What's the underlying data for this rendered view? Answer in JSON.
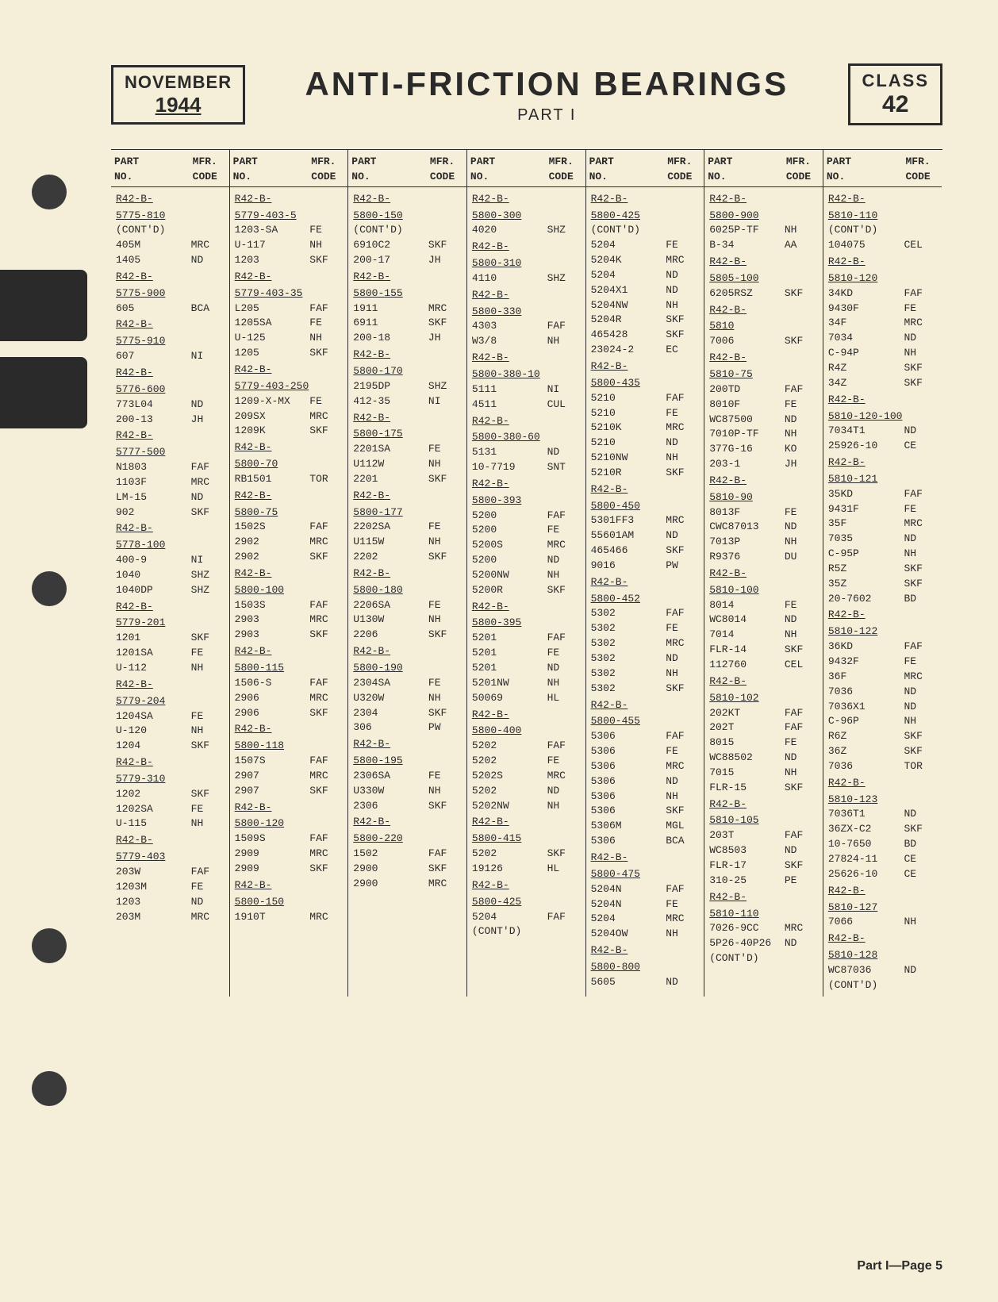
{
  "header": {
    "month": "NOVEMBER",
    "year": "1944",
    "title": "ANTI-FRICTION BEARINGS",
    "part": "PART I",
    "class_label": "CLASS",
    "class_num": "42"
  },
  "column_header": {
    "part_no_l1": "PART",
    "part_no_l2": "NO.",
    "mfr_l1": "MFR.",
    "mfr_l2": "CODE"
  },
  "footer": "Part I—Page 5",
  "colors": {
    "page_bg": "#f5eed8",
    "ink": "#2a2a2a"
  },
  "columns": [
    [
      {
        "hdr": "R42-B-\n5775-810",
        "note": "(CONT'D)"
      },
      {
        "pn": "405M",
        "mc": "MRC"
      },
      {
        "pn": "1405",
        "mc": "ND"
      },
      {
        "hdr": "R42-B-\n5775-900"
      },
      {
        "pn": "605",
        "mc": "BCA"
      },
      {
        "hdr": "R42-B-\n5775-910"
      },
      {
        "pn": "607",
        "mc": "NI"
      },
      {
        "hdr": "R42-B-\n5776-600"
      },
      {
        "pn": "773L04",
        "mc": "ND"
      },
      {
        "pn": "200-13",
        "mc": "JH"
      },
      {
        "hdr": "R42-B-\n5777-500"
      },
      {
        "pn": "N1803",
        "mc": "FAF"
      },
      {
        "pn": "1103F",
        "mc": "MRC"
      },
      {
        "pn": "LM-15",
        "mc": "ND"
      },
      {
        "pn": "902",
        "mc": "SKF"
      },
      {
        "hdr": "R42-B-\n5778-100"
      },
      {
        "pn": "400-9",
        "mc": "NI"
      },
      {
        "pn": "1040",
        "mc": "SHZ"
      },
      {
        "pn": "1040DP",
        "mc": "SHZ"
      },
      {
        "hdr": "R42-B-\n5779-201"
      },
      {
        "pn": "1201",
        "mc": "SKF"
      },
      {
        "pn": "1201SA",
        "mc": "FE"
      },
      {
        "pn": "U-112",
        "mc": "NH"
      },
      {
        "hdr": "R42-B-\n5779-204"
      },
      {
        "pn": "1204SA",
        "mc": "FE"
      },
      {
        "pn": "U-120",
        "mc": "NH"
      },
      {
        "pn": "1204",
        "mc": "SKF"
      },
      {
        "hdr": "R42-B-\n5779-310"
      },
      {
        "pn": "1202",
        "mc": "SKF"
      },
      {
        "pn": "1202SA",
        "mc": "FE"
      },
      {
        "pn": "U-115",
        "mc": "NH"
      },
      {
        "hdr": "R42-B-\n5779-403"
      },
      {
        "pn": "203W",
        "mc": "FAF"
      },
      {
        "pn": "1203M",
        "mc": "FE"
      },
      {
        "pn": "1203",
        "mc": "ND"
      },
      {
        "pn": "203M",
        "mc": "MRC"
      }
    ],
    [
      {
        "hdr": "R42-B-\n5779-403-5"
      },
      {
        "pn": "1203-SA",
        "mc": "FE"
      },
      {
        "pn": "U-117",
        "mc": "NH"
      },
      {
        "pn": "1203",
        "mc": "SKF"
      },
      {
        "hdr": "R42-B-\n5779-403-35"
      },
      {
        "pn": "L205",
        "mc": "FAF"
      },
      {
        "pn": "1205SA",
        "mc": "FE"
      },
      {
        "pn": "U-125",
        "mc": "NH"
      },
      {
        "pn": "1205",
        "mc": "SKF"
      },
      {
        "hdr": "R42-B-\n5779-403-250"
      },
      {
        "pn": "1209-X-MX",
        "mc": "FE"
      },
      {
        "pn": "209SX",
        "mc": "MRC"
      },
      {
        "pn": "1209K",
        "mc": "SKF"
      },
      {
        "hdr": "R42-B-\n5800-70"
      },
      {
        "pn": "RB1501",
        "mc": "TOR"
      },
      {
        "hdr": "R42-B-\n5800-75"
      },
      {
        "pn": "1502S",
        "mc": "FAF"
      },
      {
        "pn": "2902",
        "mc": "MRC"
      },
      {
        "pn": "2902",
        "mc": "SKF"
      },
      {
        "hdr": "R42-B-\n5800-100"
      },
      {
        "pn": "1503S",
        "mc": "FAF"
      },
      {
        "pn": "2903",
        "mc": "MRC"
      },
      {
        "pn": "2903",
        "mc": "SKF"
      },
      {
        "hdr": "R42-B-\n5800-115"
      },
      {
        "pn": "1506-S",
        "mc": "FAF"
      },
      {
        "pn": "2906",
        "mc": "MRC"
      },
      {
        "pn": "2906",
        "mc": "SKF"
      },
      {
        "hdr": "R42-B-\n5800-118"
      },
      {
        "pn": "1507S",
        "mc": "FAF"
      },
      {
        "pn": "2907",
        "mc": "MRC"
      },
      {
        "pn": "2907",
        "mc": "SKF"
      },
      {
        "hdr": "R42-B-\n5800-120"
      },
      {
        "pn": "1509S",
        "mc": "FAF"
      },
      {
        "pn": "2909",
        "mc": "MRC"
      },
      {
        "pn": "2909",
        "mc": "SKF"
      },
      {
        "hdr": "R42-B-\n5800-150"
      },
      {
        "pn": "1910T",
        "mc": "MRC"
      }
    ],
    [
      {
        "hdr": "R42-B-\n5800-150",
        "note": "(CONT'D)"
      },
      {
        "pn": "6910C2",
        "mc": "SKF"
      },
      {
        "pn": "200-17",
        "mc": "JH"
      },
      {
        "hdr": "R42-B-\n5800-155"
      },
      {
        "pn": "1911",
        "mc": "MRC"
      },
      {
        "pn": "6911",
        "mc": "SKF"
      },
      {
        "pn": "200-18",
        "mc": "JH"
      },
      {
        "hdr": "R42-B-\n5800-170"
      },
      {
        "pn": "2195DP",
        "mc": "SHZ"
      },
      {
        "pn": "412-35",
        "mc": "NI"
      },
      {
        "hdr": "R42-B-\n5800-175"
      },
      {
        "pn": "2201SA",
        "mc": "FE"
      },
      {
        "pn": "U112W",
        "mc": "NH"
      },
      {
        "pn": "2201",
        "mc": "SKF"
      },
      {
        "hdr": "R42-B-\n5800-177"
      },
      {
        "pn": "2202SA",
        "mc": "FE"
      },
      {
        "pn": "U115W",
        "mc": "NH"
      },
      {
        "pn": "2202",
        "mc": "SKF"
      },
      {
        "hdr": "R42-B-\n5800-180"
      },
      {
        "pn": "2206SA",
        "mc": "FE"
      },
      {
        "pn": "U130W",
        "mc": "NH"
      },
      {
        "pn": "2206",
        "mc": "SKF"
      },
      {
        "hdr": "R42-B-\n5800-190"
      },
      {
        "pn": "2304SA",
        "mc": "FE"
      },
      {
        "pn": "U320W",
        "mc": "NH"
      },
      {
        "pn": "2304",
        "mc": "SKF"
      },
      {
        "pn": "306",
        "mc": "PW"
      },
      {
        "hdr": "R42-B-\n5800-195"
      },
      {
        "pn": "2306SA",
        "mc": "FE"
      },
      {
        "pn": "U330W",
        "mc": "NH"
      },
      {
        "pn": "2306",
        "mc": "SKF"
      },
      {
        "hdr": "R42-B-\n5800-220"
      },
      {
        "pn": "1502",
        "mc": "FAF"
      },
      {
        "pn": "2900",
        "mc": "SKF"
      },
      {
        "pn": "2900",
        "mc": "MRC"
      }
    ],
    [
      {
        "hdr": "R42-B-\n5800-300"
      },
      {
        "pn": "4020",
        "mc": "SHZ"
      },
      {
        "hdr": "R42-B-\n5800-310"
      },
      {
        "pn": "4110",
        "mc": "SHZ"
      },
      {
        "hdr": "R42-B-\n5800-330"
      },
      {
        "pn": "4303",
        "mc": "FAF"
      },
      {
        "pn": "W3/8",
        "mc": "NH"
      },
      {
        "hdr": "R42-B-\n5800-380-10"
      },
      {
        "pn": "5111",
        "mc": "NI"
      },
      {
        "pn": "4511",
        "mc": "CUL"
      },
      {
        "hdr": "R42-B-\n5800-380-60"
      },
      {
        "pn": "5131",
        "mc": "ND"
      },
      {
        "pn": "10-7719",
        "mc": "SNT"
      },
      {
        "hdr": "R42-B-\n5800-393"
      },
      {
        "pn": "5200",
        "mc": "FAF"
      },
      {
        "pn": "5200",
        "mc": "FE"
      },
      {
        "pn": "5200S",
        "mc": "MRC"
      },
      {
        "pn": "5200",
        "mc": "ND"
      },
      {
        "pn": "5200NW",
        "mc": "NH"
      },
      {
        "pn": "5200R",
        "mc": "SKF"
      },
      {
        "hdr": "R42-B-\n5800-395"
      },
      {
        "pn": "5201",
        "mc": "FAF"
      },
      {
        "pn": "5201",
        "mc": "FE"
      },
      {
        "pn": "5201",
        "mc": "ND"
      },
      {
        "pn": "5201NW",
        "mc": "NH"
      },
      {
        "pn": "50069",
        "mc": "HL"
      },
      {
        "hdr": "R42-B-\n5800-400"
      },
      {
        "pn": "5202",
        "mc": "FAF"
      },
      {
        "pn": "5202",
        "mc": "FE"
      },
      {
        "pn": "5202S",
        "mc": "MRC"
      },
      {
        "pn": "5202",
        "mc": "ND"
      },
      {
        "pn": "5202NW",
        "mc": "NH"
      },
      {
        "hdr": "R42-B-\n5800-415"
      },
      {
        "pn": "5202",
        "mc": "SKF"
      },
      {
        "pn": "19126",
        "mc": "HL"
      },
      {
        "hdr": "R42-B-\n5800-425"
      },
      {
        "pn": "5204",
        "mc": "FAF"
      },
      {
        "pn": "(CONT'D)"
      }
    ],
    [
      {
        "hdr": "R42-B-\n5800-425",
        "note": "(CONT'D)"
      },
      {
        "pn": "5204",
        "mc": "FE"
      },
      {
        "pn": "5204K",
        "mc": "MRC"
      },
      {
        "pn": "5204",
        "mc": "ND"
      },
      {
        "pn": "5204X1",
        "mc": "ND"
      },
      {
        "pn": "5204NW",
        "mc": "NH"
      },
      {
        "pn": "5204R",
        "mc": "SKF"
      },
      {
        "pn": "465428",
        "mc": "SKF"
      },
      {
        "pn": "23024-2",
        "mc": "EC"
      },
      {
        "hdr": "R42-B-\n5800-435"
      },
      {
        "pn": "5210",
        "mc": "FAF"
      },
      {
        "pn": "5210",
        "mc": "FE"
      },
      {
        "pn": "5210K",
        "mc": "MRC"
      },
      {
        "pn": "5210",
        "mc": "ND"
      },
      {
        "pn": "5210NW",
        "mc": "NH"
      },
      {
        "pn": "5210R",
        "mc": "SKF"
      },
      {
        "hdr": "R42-B-\n5800-450"
      },
      {
        "pn": "5301FF3",
        "mc": "MRC"
      },
      {
        "pn": "55601AM",
        "mc": "ND"
      },
      {
        "pn": "465466",
        "mc": "SKF"
      },
      {
        "pn": "9016",
        "mc": "PW"
      },
      {
        "hdr": "R42-B-\n5800-452"
      },
      {
        "pn": "5302",
        "mc": "FAF"
      },
      {
        "pn": "5302",
        "mc": "FE"
      },
      {
        "pn": "5302",
        "mc": "MRC"
      },
      {
        "pn": "5302",
        "mc": "ND"
      },
      {
        "pn": "5302",
        "mc": "NH"
      },
      {
        "pn": "5302",
        "mc": "SKF"
      },
      {
        "hdr": "R42-B-\n5800-455"
      },
      {
        "pn": "5306",
        "mc": "FAF"
      },
      {
        "pn": "5306",
        "mc": "FE"
      },
      {
        "pn": "5306",
        "mc": "MRC"
      },
      {
        "pn": "5306",
        "mc": "ND"
      },
      {
        "pn": "5306",
        "mc": "NH"
      },
      {
        "pn": "5306",
        "mc": "SKF"
      },
      {
        "pn": "5306M",
        "mc": "MGL"
      },
      {
        "pn": "5306",
        "mc": "BCA"
      },
      {
        "hdr": "R42-B-\n5800-475"
      },
      {
        "pn": "5204N",
        "mc": "FAF"
      },
      {
        "pn": "5204N",
        "mc": "FE"
      },
      {
        "pn": "5204",
        "mc": "MRC"
      },
      {
        "pn": "5204OW",
        "mc": "NH"
      },
      {
        "hdr": "R42-B-\n5800-800"
      },
      {
        "pn": "5605",
        "mc": "ND"
      }
    ],
    [
      {
        "hdr": "R42-B-\n5800-900"
      },
      {
        "pn": "6025P-TF",
        "mc": "NH"
      },
      {
        "pn": "B-34",
        "mc": "AA"
      },
      {
        "hdr": "R42-B-\n5805-100"
      },
      {
        "pn": "6205RSZ",
        "mc": "SKF"
      },
      {
        "hdr": "R42-B-\n5810"
      },
      {
        "pn": "7006",
        "mc": "SKF"
      },
      {
        "hdr": "R42-B-\n5810-75"
      },
      {
        "pn": "200TD",
        "mc": "FAF"
      },
      {
        "pn": "8010F",
        "mc": "FE"
      },
      {
        "pn": "WC87500",
        "mc": "ND"
      },
      {
        "pn": "7010P-TF",
        "mc": "NH"
      },
      {
        "pn": "377G-16",
        "mc": "KO"
      },
      {
        "pn": "203-1",
        "mc": "JH"
      },
      {
        "hdr": "R42-B-\n5810-90"
      },
      {
        "pn": "8013F",
        "mc": "FE"
      },
      {
        "pn": "CWC87013",
        "mc": "ND"
      },
      {
        "pn": "7013P",
        "mc": "NH"
      },
      {
        "pn": "R9376",
        "mc": "DU"
      },
      {
        "hdr": "R42-B-\n5810-100"
      },
      {
        "pn": "8014",
        "mc": "FE"
      },
      {
        "pn": "WC8014",
        "mc": "ND"
      },
      {
        "pn": "7014",
        "mc": "NH"
      },
      {
        "pn": "FLR-14",
        "mc": "SKF"
      },
      {
        "pn": "112760",
        "mc": "CEL"
      },
      {
        "hdr": "R42-B-\n5810-102"
      },
      {
        "pn": "202KT",
        "mc": "FAF"
      },
      {
        "pn": "202T",
        "mc": "FAF"
      },
      {
        "pn": "8015",
        "mc": "FE"
      },
      {
        "pn": "WC88502",
        "mc": "ND"
      },
      {
        "pn": "7015",
        "mc": "NH"
      },
      {
        "pn": "FLR-15",
        "mc": "SKF"
      },
      {
        "hdr": "R42-B-\n5810-105"
      },
      {
        "pn": "203T",
        "mc": "FAF"
      },
      {
        "pn": "WC8503",
        "mc": "ND"
      },
      {
        "pn": "FLR-17",
        "mc": "SKF"
      },
      {
        "pn": "310-25",
        "mc": "PE"
      },
      {
        "hdr": "R42-B-\n5810-110"
      },
      {
        "pn": "7026-9CC",
        "mc": "MRC"
      },
      {
        "pn": "5P26-40P26",
        "mc": "ND"
      },
      {
        "pn": "(CONT'D)"
      }
    ],
    [
      {
        "hdr": "R42-B-\n5810-110",
        "note": "(CONT'D)"
      },
      {
        "pn": "104075",
        "mc": "CEL"
      },
      {
        "hdr": "R42-B-\n5810-120"
      },
      {
        "pn": "34KD",
        "mc": "FAF"
      },
      {
        "pn": "9430F",
        "mc": "FE"
      },
      {
        "pn": "34F",
        "mc": "MRC"
      },
      {
        "pn": "7034",
        "mc": "ND"
      },
      {
        "pn": "C-94P",
        "mc": "NH"
      },
      {
        "pn": "R4Z",
        "mc": "SKF"
      },
      {
        "pn": "34Z",
        "mc": "SKF"
      },
      {
        "hdr": "R42-B-\n5810-120-100"
      },
      {
        "pn": "7034T1",
        "mc": "ND"
      },
      {
        "pn": "25926-10",
        "mc": "CE"
      },
      {
        "hdr": "R42-B-\n5810-121"
      },
      {
        "pn": "35KD",
        "mc": "FAF"
      },
      {
        "pn": "9431F",
        "mc": "FE"
      },
      {
        "pn": "35F",
        "mc": "MRC"
      },
      {
        "pn": "7035",
        "mc": "ND"
      },
      {
        "pn": "C-95P",
        "mc": "NH"
      },
      {
        "pn": "R5Z",
        "mc": "SKF"
      },
      {
        "pn": "35Z",
        "mc": "SKF"
      },
      {
        "pn": "20-7602",
        "mc": "BD"
      },
      {
        "hdr": "R42-B-\n5810-122"
      },
      {
        "pn": "36KD",
        "mc": "FAF"
      },
      {
        "pn": "9432F",
        "mc": "FE"
      },
      {
        "pn": "36F",
        "mc": "MRC"
      },
      {
        "pn": "7036",
        "mc": "ND"
      },
      {
        "pn": "7036X1",
        "mc": "ND"
      },
      {
        "pn": "C-96P",
        "mc": "NH"
      },
      {
        "pn": "R6Z",
        "mc": "SKF"
      },
      {
        "pn": "36Z",
        "mc": "SKF"
      },
      {
        "pn": "7036",
        "mc": "TOR"
      },
      {
        "hdr": "R42-B-\n5810-123"
      },
      {
        "pn": "7036T1",
        "mc": "ND"
      },
      {
        "pn": "36ZX-C2",
        "mc": "SKF"
      },
      {
        "pn": "10-7650",
        "mc": "BD"
      },
      {
        "pn": "27824-11",
        "mc": "CE"
      },
      {
        "pn": "25626-10",
        "mc": "CE"
      },
      {
        "hdr": "R42-B-\n5810-127"
      },
      {
        "pn": "7066",
        "mc": "NH"
      },
      {
        "hdr": "R42-B-\n5810-128"
      },
      {
        "pn": "WC87036",
        "mc": "ND"
      },
      {
        "pn": "(CONT'D)"
      }
    ]
  ]
}
